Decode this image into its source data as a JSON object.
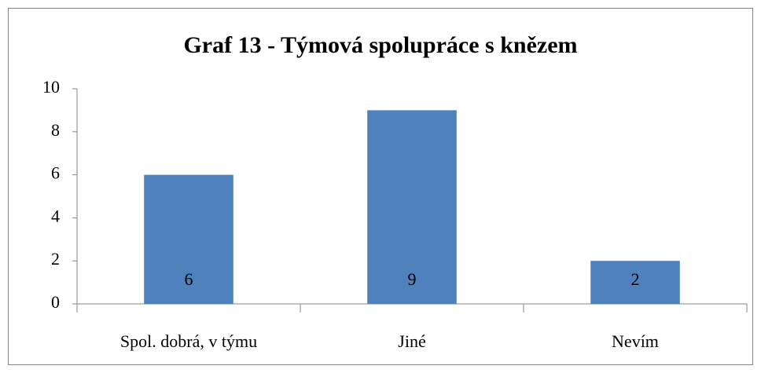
{
  "chart_data": {
    "type": "bar",
    "title": "Graf 13 - Týmová spolupráce s knězem",
    "categories": [
      "Spol. dobrá, v týmu",
      "Jiné",
      "Nevím"
    ],
    "values": [
      6,
      9,
      2
    ],
    "color": "#4f81bd",
    "ylim": [
      0,
      10
    ],
    "yticks": [
      0,
      2,
      4,
      6,
      8,
      10
    ],
    "grid": false,
    "data_labels": true
  }
}
